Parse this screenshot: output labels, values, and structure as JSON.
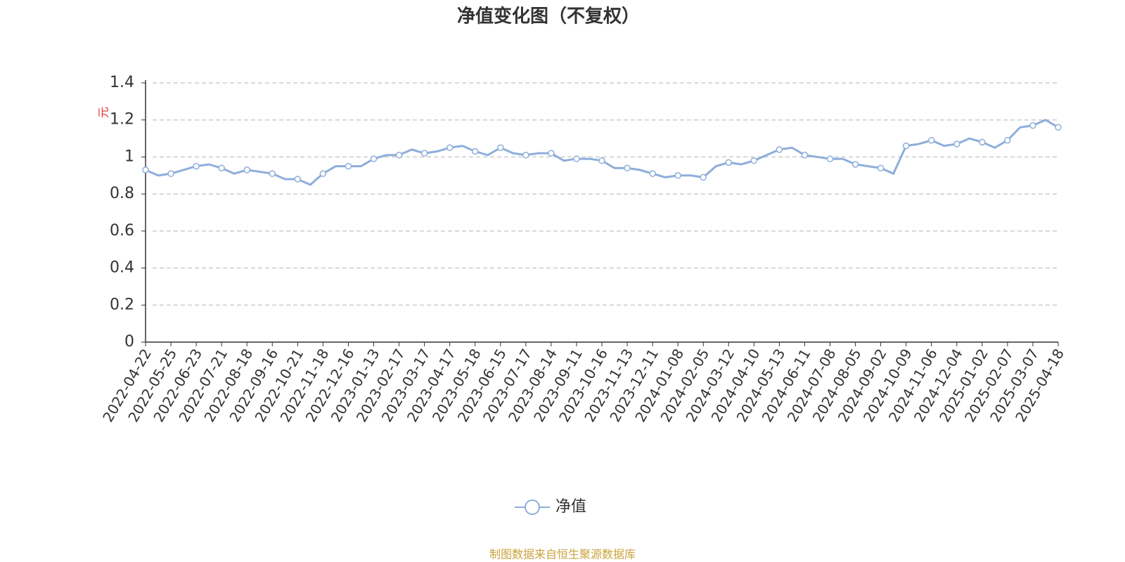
{
  "chart_data": {
    "type": "line",
    "title": "净值变化图（不复权）",
    "y_label": "元",
    "source": "制图数据来自恒生聚源数据库",
    "categories": [
      "2022-04-22",
      null,
      "2022-05-25",
      null,
      "2022-06-23",
      null,
      "2022-07-21",
      null,
      "2022-08-18",
      null,
      "2022-09-16",
      null,
      "2022-10-21",
      null,
      "2022-11-18",
      null,
      "2022-12-16",
      null,
      "2023-01-13",
      null,
      "2023-02-17",
      null,
      "2023-03-17",
      null,
      "2023-04-17",
      null,
      "2023-05-18",
      null,
      "2023-06-15",
      null,
      "2023-07-17",
      null,
      "2023-08-14",
      null,
      "2023-09-11",
      null,
      "2023-10-16",
      null,
      "2023-11-13",
      null,
      "2023-12-11",
      null,
      "2024-01-08",
      null,
      "2024-02-05",
      null,
      "2024-03-12",
      null,
      "2024-04-10",
      null,
      "2024-05-13",
      null,
      "2024-06-11",
      null,
      "2024-07-08",
      null,
      "2024-08-05",
      null,
      "2024-09-02",
      null,
      "2024-10-09",
      null,
      "2024-11-06",
      null,
      "2024-12-04",
      null,
      "2025-01-02",
      null,
      "2025-02-07",
      null,
      "2025-03-07",
      null,
      "2025-04-18"
    ],
    "series": [
      {
        "name": "净值",
        "color": "#8eaedb",
        "values": [
          0.93,
          0.9,
          0.91,
          0.93,
          0.95,
          0.96,
          0.94,
          0.91,
          0.93,
          0.92,
          0.91,
          0.88,
          0.88,
          0.85,
          0.91,
          0.95,
          0.95,
          0.95,
          0.99,
          1.01,
          1.01,
          1.04,
          1.02,
          1.03,
          1.05,
          1.06,
          1.03,
          1.01,
          1.05,
          1.02,
          1.01,
          1.02,
          1.02,
          0.98,
          0.99,
          0.99,
          0.98,
          0.94,
          0.94,
          0.93,
          0.91,
          0.89,
          0.9,
          0.9,
          0.89,
          0.95,
          0.97,
          0.96,
          0.98,
          1.01,
          1.04,
          1.05,
          1.01,
          1.0,
          0.99,
          0.99,
          0.96,
          0.95,
          0.94,
          0.91,
          1.06,
          1.07,
          1.09,
          1.06,
          1.07,
          1.1,
          1.08,
          1.05,
          1.09,
          1.16,
          1.17,
          1.2,
          1.16
        ]
      }
    ],
    "ylim": [
      0,
      1.4
    ],
    "yticks": [
      0,
      {
        "value": 0.2,
        "label": "0.2"
      },
      {
        "value": 0.4,
        "label": "0.4"
      },
      {
        "value": 0.6,
        "label": "0.6"
      },
      {
        "value": 0.8,
        "label": "0.8"
      },
      1,
      {
        "value": 1.2,
        "label": "1.2"
      },
      {
        "value": 1.4,
        "label": "1.4"
      }
    ],
    "grid": true,
    "legend": "bottom"
  }
}
